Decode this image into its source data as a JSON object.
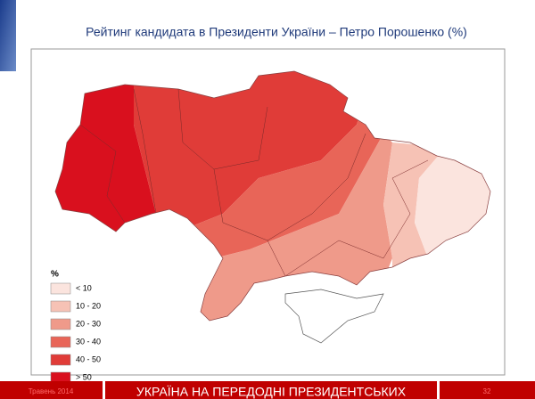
{
  "title": "Рейтинг кандидата в Президенти України – Петро Порошенко (%)",
  "legend": {
    "title": "%",
    "items": [
      {
        "label": "< 10",
        "color": "#fbe4de"
      },
      {
        "label": "10 - 20",
        "color": "#f6c2b5"
      },
      {
        "label": "20 - 30",
        "color": "#ef9a8a"
      },
      {
        "label": "30 - 40",
        "color": "#e86558"
      },
      {
        "label": "40 - 50",
        "color": "#e03c38"
      },
      {
        "label": "> 50",
        "color": "#d9101e"
      }
    ]
  },
  "footer": {
    "date": "Травень 2014",
    "banner": "УКРАЇНА НА ПЕРЕДОДНІ ПРЕЗИДЕНТСЬКИХ",
    "page": "32"
  }
}
